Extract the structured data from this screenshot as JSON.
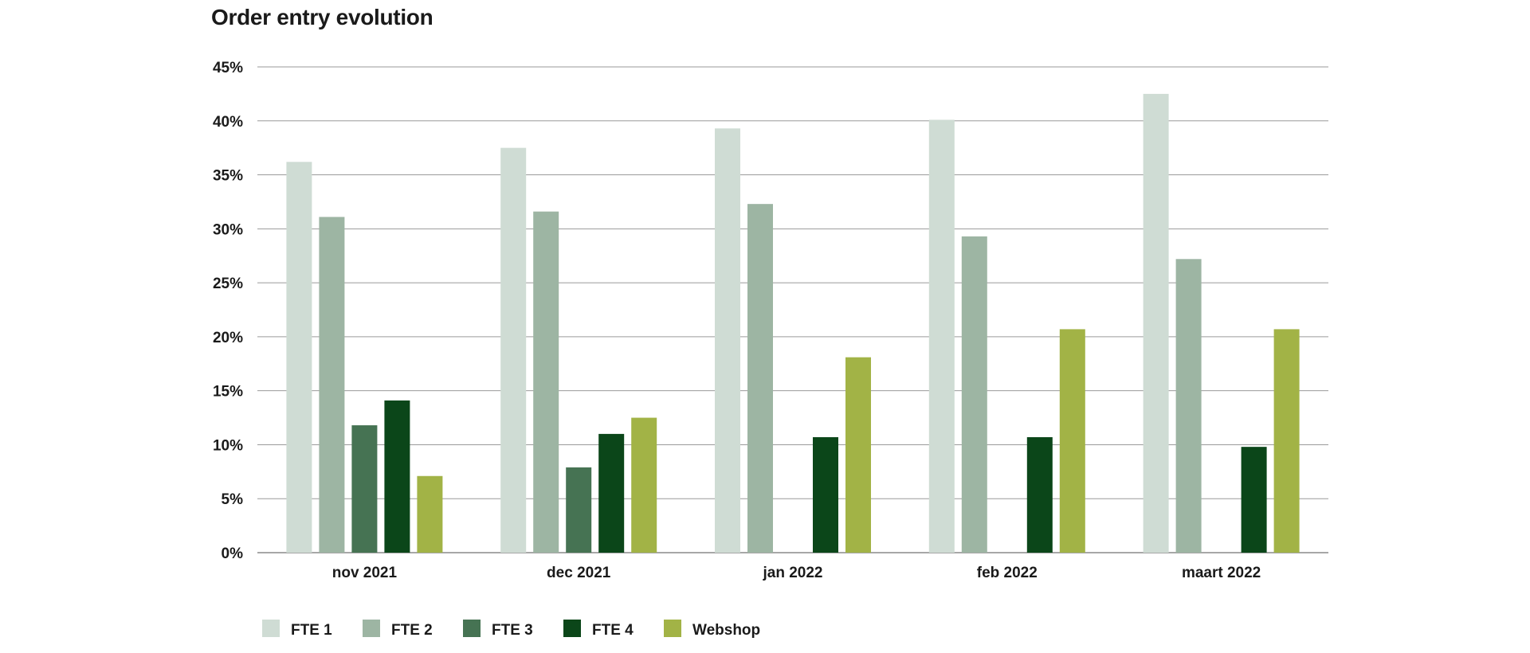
{
  "chart_data": {
    "type": "bar",
    "title": "Order entry evolution",
    "xlabel": "",
    "ylabel": "",
    "categories": [
      "nov 2021",
      "dec 2021",
      "jan 2022",
      "feb 2022",
      "maart 2022"
    ],
    "ylim": [
      0,
      45
    ],
    "yticks": [
      0,
      5,
      10,
      15,
      20,
      25,
      30,
      35,
      40,
      45
    ],
    "ytick_labels": [
      "0%",
      "5%",
      "10%",
      "15%",
      "20%",
      "25%",
      "30%",
      "35%",
      "40%",
      "45%"
    ],
    "grid": true,
    "legend_position": "bottom-left",
    "series": [
      {
        "name": "FTE 1",
        "color": "#cfdcd4",
        "values": [
          36.2,
          37.5,
          39.3,
          40.1,
          42.5
        ]
      },
      {
        "name": "FTE 2",
        "color": "#9db5a3",
        "values": [
          31.1,
          31.6,
          32.3,
          29.3,
          27.2
        ]
      },
      {
        "name": "FTE 3",
        "color": "#467353",
        "values": [
          11.8,
          7.9,
          0,
          0,
          0
        ]
      },
      {
        "name": "FTE 4",
        "color": "#0b4619",
        "values": [
          14.1,
          11.0,
          10.7,
          10.7,
          9.8
        ]
      },
      {
        "name": "Webshop",
        "color": "#a2b346",
        "values": [
          7.1,
          12.5,
          18.1,
          20.7,
          20.7
        ]
      }
    ]
  }
}
